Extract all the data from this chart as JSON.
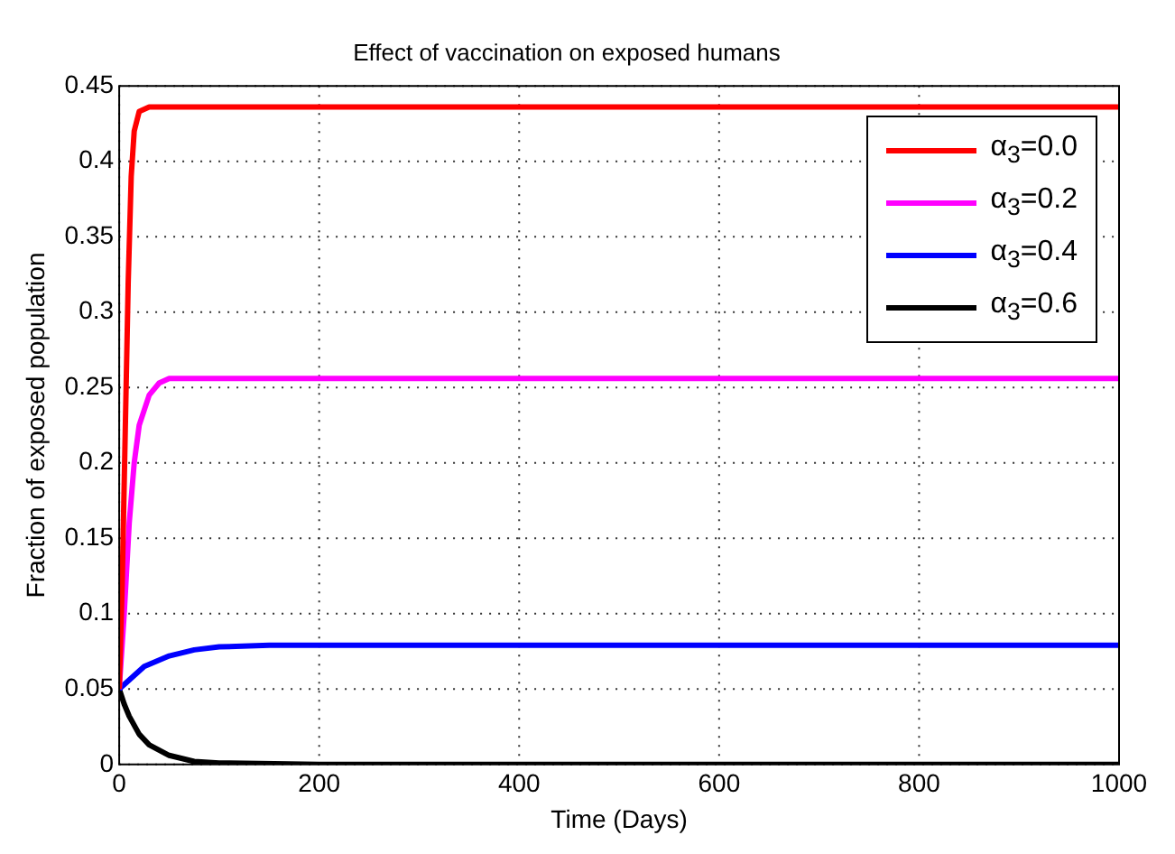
{
  "chart_data": {
    "type": "line",
    "title": "Effect of vaccination on exposed humans",
    "xlabel": "Time (Days)",
    "ylabel": "Fraction of exposed population",
    "series": [
      {
        "name": "α$_{3}$=0.0",
        "color": "#ff0000",
        "x": [
          0,
          3,
          6,
          9,
          12,
          15,
          20,
          30,
          1000
        ],
        "values": [
          0.05,
          0.12,
          0.22,
          0.32,
          0.39,
          0.42,
          0.433,
          0.436,
          0.436
        ]
      },
      {
        "name": "α$_{3}$=0.2",
        "color": "#ff00ff",
        "x": [
          0,
          5,
          10,
          15,
          20,
          30,
          40,
          50,
          1000
        ],
        "values": [
          0.05,
          0.1,
          0.16,
          0.2,
          0.225,
          0.245,
          0.253,
          0.256,
          0.256
        ]
      },
      {
        "name": "α$_{3}$=0.4",
        "color": "#0000ff",
        "x": [
          0,
          10,
          25,
          50,
          75,
          100,
          150,
          1000
        ],
        "values": [
          0.05,
          0.056,
          0.065,
          0.072,
          0.076,
          0.078,
          0.079,
          0.079
        ]
      },
      {
        "name": "α$_{3}$=0.6",
        "color": "#000000",
        "x": [
          0,
          5,
          10,
          20,
          30,
          50,
          75,
          100,
          200,
          1000
        ],
        "values": [
          0.05,
          0.04,
          0.032,
          0.02,
          0.013,
          0.006,
          0.002,
          0.001,
          0,
          0
        ]
      }
    ],
    "xlim": [
      0,
      1000
    ],
    "xticks": [
      0,
      200,
      400,
      600,
      800,
      1000
    ],
    "ylim": [
      0,
      0.45
    ],
    "yticks": [
      0,
      0.05,
      0.1,
      0.15,
      0.2,
      0.25,
      0.3,
      0.35,
      0.4,
      0.45
    ],
    "grid": true,
    "legend": "top right",
    "line_style": "solid",
    "marker": "none"
  }
}
